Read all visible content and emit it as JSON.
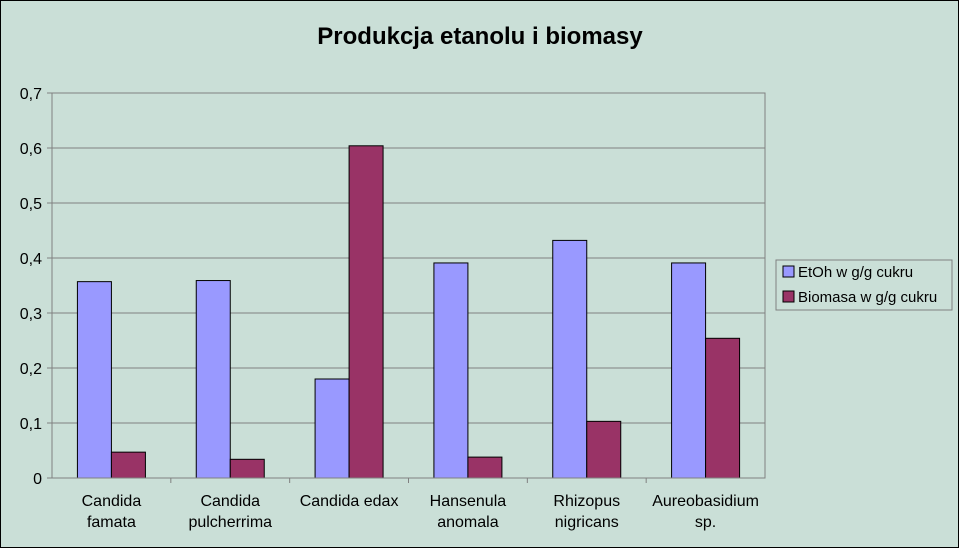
{
  "chart_data": {
    "type": "bar",
    "title": "Produkcja etanolu i biomasy",
    "categories": [
      [
        "Candida",
        "famata"
      ],
      [
        "Candida",
        "pulcherrima"
      ],
      [
        "Candida edax"
      ],
      [
        "Hansenula",
        "anomala"
      ],
      [
        "Rhizopus",
        "nigricans"
      ],
      [
        "Aureobasidium",
        "sp."
      ]
    ],
    "series": [
      {
        "name": "EtOh w g/g cukru",
        "color": "#9999FF",
        "values": [
          0.357,
          0.359,
          0.18,
          0.391,
          0.432,
          0.391
        ]
      },
      {
        "name": "Biomasa w g/g cukru",
        "color": "#993366",
        "values": [
          0.047,
          0.034,
          0.604,
          0.038,
          0.103,
          0.254
        ]
      }
    ],
    "yticks": [
      "0",
      "0,1",
      "0,2",
      "0,3",
      "0,4",
      "0,5",
      "0,6",
      "0,7"
    ],
    "ylim": [
      0,
      0.7
    ],
    "grid": true,
    "legend_position": "right",
    "background_color": "#CADFD7",
    "plot_background_color": "#CADFD7"
  }
}
